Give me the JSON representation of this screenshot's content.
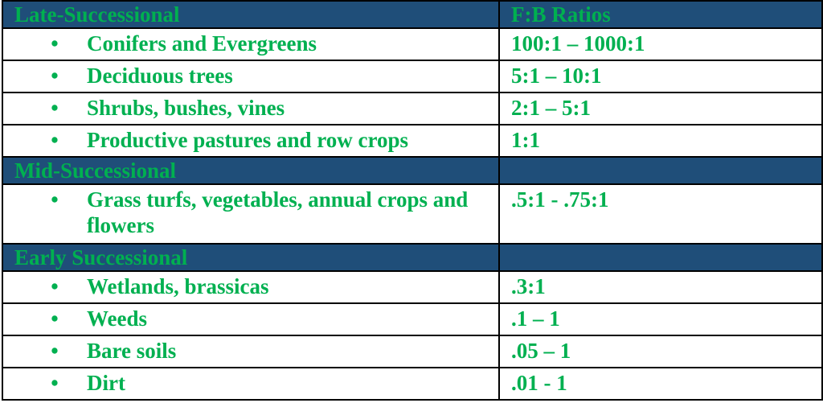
{
  "table": {
    "ratio_header": "F:B Ratios",
    "bullet": "•",
    "groups": [
      {
        "title": "Late-Successional",
        "items": [
          {
            "label": "Conifers and Evergreens",
            "ratio": "100:1 – 1000:1"
          },
          {
            "label": "Deciduous trees",
            "ratio": "5:1 – 10:1"
          },
          {
            "label": "Shrubs, bushes, vines",
            "ratio": "2:1 – 5:1"
          },
          {
            "label": "Productive pastures and row crops",
            "ratio": "1:1"
          }
        ]
      },
      {
        "title": "Mid-Successional",
        "items": [
          {
            "label": "Grass turfs, vegetables, annual crops and flowers",
            "ratio": ".5:1 - .75:1"
          }
        ]
      },
      {
        "title": "Early Successional",
        "items": [
          {
            "label": "Wetlands, brassicas",
            "ratio": ".3:1"
          },
          {
            "label": "Weeds",
            "ratio": ".1 – 1"
          },
          {
            "label": "Bare soils",
            "ratio": ".05 – 1"
          },
          {
            "label": "Dirt",
            "ratio": ".01 - 1"
          }
        ]
      }
    ],
    "colors": {
      "header_bg": "#1f4e79",
      "text": "#00b050",
      "border": "#000000"
    }
  }
}
